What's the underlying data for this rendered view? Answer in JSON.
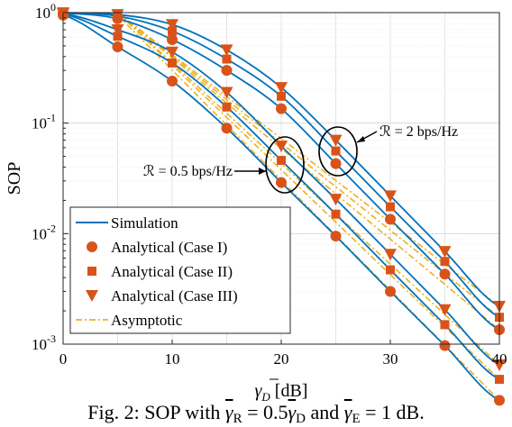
{
  "caption": {
    "prefix": "Fig. 2: SOP with",
    "gr_sym": "γ",
    "gr_sub": "R",
    "eq1": "= 0.5",
    "gd_sym": "γ",
    "gd_sub": "D",
    "mid": "and",
    "ge_sym": "γ",
    "ge_sub": "E",
    "eq2": "= 1 dB."
  },
  "annotations": [
    {
      "id": "ann-2bps",
      "text": "ℛ = 2 bps/Hz"
    },
    {
      "id": "ann-05bps",
      "text": "ℛ = 0.5 bps/Hz"
    }
  ],
  "chart_data": {
    "type": "line",
    "title": "",
    "xlabel": "γ̄D [dB]",
    "ylabel": "SOP",
    "xlim": [
      0,
      40
    ],
    "ylim": [
      0.001,
      1
    ],
    "yscale": "log",
    "grid": true,
    "x_ticks": [
      "0",
      "10",
      "20",
      "30",
      "40"
    ],
    "y_ticks": [
      {
        "base": "10",
        "exp": "0"
      },
      {
        "base": "10",
        "exp": "-1"
      },
      {
        "base": "10",
        "exp": "-2"
      },
      {
        "base": "10",
        "exp": "-3"
      }
    ],
    "colors": {
      "simulation": "#0072BD",
      "analytical": "#D95319",
      "asymptotic": "#EDB120"
    },
    "legend": {
      "position": "bottom-left",
      "entries": [
        {
          "label": "Simulation",
          "style": "solid-line"
        },
        {
          "label": "Analytical (Case I)",
          "style": "circle"
        },
        {
          "label": "Analytical (Case II)",
          "style": "square"
        },
        {
          "label": "Analytical (Case III)",
          "style": "triangle-down"
        },
        {
          "label": "Asymptotic",
          "style": "dash-dot-line"
        }
      ]
    },
    "marker_x": [
      0,
      5,
      10,
      15,
      20,
      25,
      30,
      35,
      40
    ],
    "asymptote_x": [
      5,
      40
    ],
    "groups": [
      {
        "rate": "ℛ = 0.5 bps/Hz",
        "series": [
          {
            "case": "I",
            "marker": "circle",
            "values": [
              0.95,
              0.49,
              0.24,
              0.09,
              0.029,
              0.0095,
              0.003,
              0.00097,
              0.00031
            ],
            "asymptote": [
              0.95,
              0.00031
            ]
          },
          {
            "case": "II",
            "marker": "square",
            "values": [
              0.97,
              0.61,
              0.35,
              0.14,
              0.046,
              0.015,
              0.0047,
              0.0015,
              0.00048
            ],
            "asymptote": [
              1.5,
              0.00048
            ]
          },
          {
            "case": "III",
            "marker": "triangle-down",
            "values": [
              0.98,
              0.7,
              0.44,
              0.19,
              0.062,
              0.0205,
              0.0065,
              0.00205,
              0.00065
            ],
            "asymptote": [
              2.05,
              0.00065
            ]
          }
        ]
      },
      {
        "rate": "ℛ = 2 bps/Hz",
        "series": [
          {
            "case": "I",
            "marker": "circle",
            "values": [
              0.99,
              0.88,
              0.57,
              0.3,
              0.135,
              0.043,
              0.0135,
              0.0043,
              0.00135
            ],
            "asymptote": [
              1.35,
              0.00135
            ]
          },
          {
            "case": "II",
            "marker": "square",
            "values": [
              0.995,
              0.93,
              0.68,
              0.38,
              0.175,
              0.056,
              0.0175,
              0.0056,
              0.00175
            ],
            "asymptote": [
              1.75,
              0.00175
            ]
          },
          {
            "case": "III",
            "marker": "triangle-down",
            "values": [
              0.998,
              0.96,
              0.78,
              0.46,
              0.21,
              0.07,
              0.022,
              0.0069,
              0.0022
            ],
            "asymptote": [
              2.2,
              0.0022
            ]
          }
        ]
      }
    ]
  }
}
